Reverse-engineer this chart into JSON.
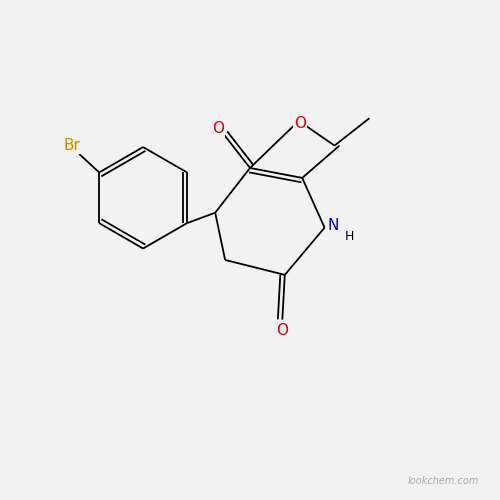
{
  "bg_color": "#f2f2f2",
  "bond_color": "#000000",
  "atom_colors": {
    "Br": "#cc8800",
    "O": "#dd0000",
    "N": "#0000cc",
    "H": "#000000",
    "C": "#000000"
  },
  "font_size_atom": 11,
  "font_size_small": 9,
  "watermark": "lookchem.com",
  "watermark_color": "#aaaaaa",
  "watermark_size": 7,
  "lw": 1.3
}
